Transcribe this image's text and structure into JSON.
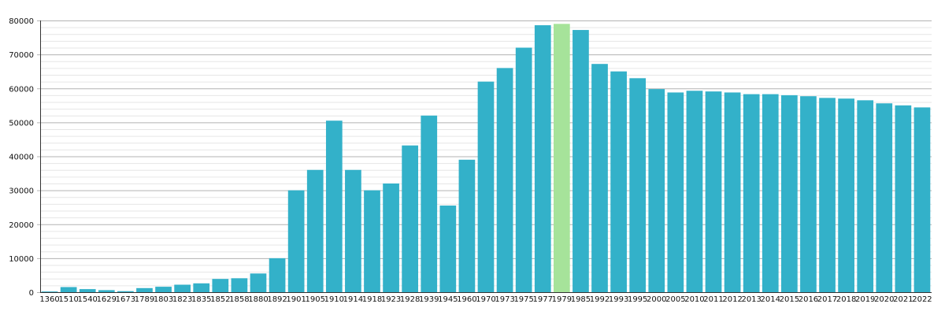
{
  "chart_data": {
    "type": "bar",
    "title": "",
    "xlabel": "",
    "ylabel": "",
    "ylim": [
      0,
      80000
    ],
    "grid": true,
    "y_ticks": [
      0,
      10000,
      20000,
      30000,
      40000,
      50000,
      60000,
      70000,
      80000
    ],
    "categories": [
      "1360",
      "1510",
      "1540",
      "1629",
      "1673",
      "1789",
      "1803",
      "1823",
      "1835",
      "1852",
      "1858",
      "1880",
      "1892",
      "1901",
      "1905",
      "1910",
      "1914",
      "1918",
      "1923",
      "1928",
      "1939",
      "1945",
      "1960",
      "1970",
      "1973",
      "1975",
      "1977",
      "1979",
      "1985",
      "1992",
      "1993",
      "1995",
      "2000",
      "2005",
      "2010",
      "2011",
      "2012",
      "2013",
      "2014",
      "2015",
      "2016",
      "2017",
      "2018",
      "2019",
      "2020",
      "2021",
      "2022"
    ],
    "values": [
      200,
      1500,
      900,
      600,
      300,
      1200,
      1600,
      2200,
      2600,
      3900,
      4100,
      5500,
      10000,
      30000,
      36000,
      50500,
      36000,
      30000,
      32000,
      43200,
      52000,
      25500,
      39000,
      62000,
      66000,
      72000,
      78600,
      79000,
      77200,
      67200,
      65000,
      63000,
      59800,
      58800,
      59300,
      59100,
      58800,
      58300,
      58300,
      58000,
      57700,
      57200,
      57000,
      56500,
      55600,
      55000,
      54400
    ],
    "highlight_category": "1979",
    "colors": {
      "bar": "#33b1c9",
      "highlight": "#a6e39a",
      "grid_major": "#b3b3b3",
      "grid_minor": "#e6e6e6",
      "axis": "#333333"
    }
  }
}
